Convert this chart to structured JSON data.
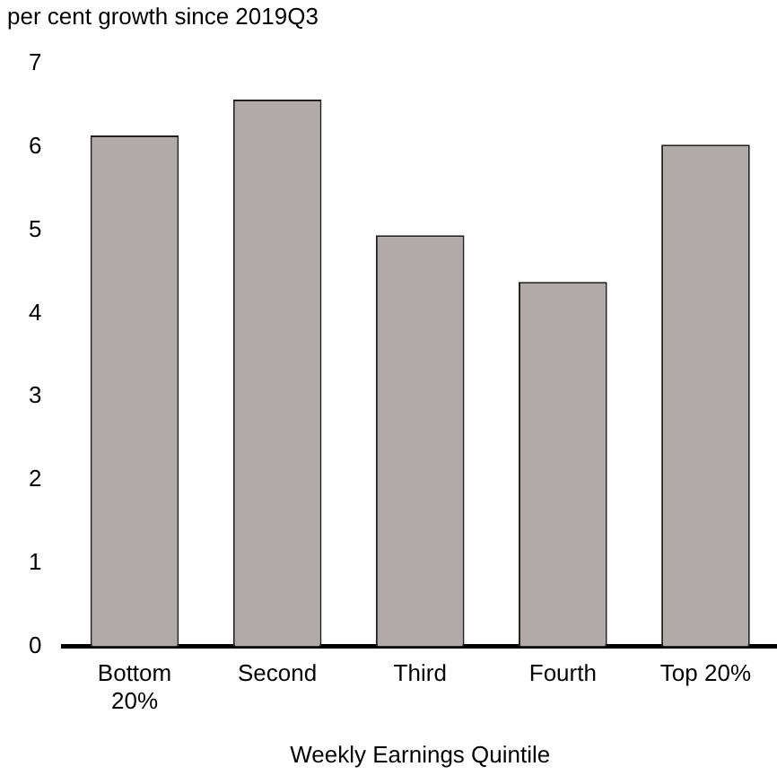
{
  "chart_data": {
    "type": "bar",
    "ylabel": "per cent growth since 2019Q3",
    "xlabel": "Weekly Earnings Quintile",
    "categories": [
      "Bottom 20%",
      "Second",
      "Third",
      "Fourth",
      "Top 20%"
    ],
    "values": [
      6.14,
      6.57,
      4.94,
      4.38,
      6.03
    ],
    "color": "#b0aaa8",
    "ylim": [
      0,
      7
    ],
    "yticks": [
      0,
      1,
      2,
      3,
      4,
      5,
      6,
      7
    ],
    "grid": false,
    "legend": false
  }
}
